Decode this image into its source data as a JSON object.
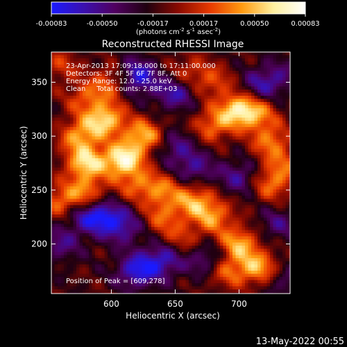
{
  "chart_data": {
    "type": "heatmap",
    "title": "Reconstructed RHESSI Image",
    "xlabel": "Heliocentric X (arcsec)",
    "ylabel": "Heliocentric Y (arcsec)",
    "xlim": [
      553,
      740
    ],
    "ylim": [
      154,
      378
    ],
    "x_ticks": [
      600,
      650,
      700
    ],
    "y_ticks": [
      200,
      250,
      300,
      350
    ],
    "colorbar": {
      "min": -0.00083,
      "max": 0.00083,
      "ticks": [
        "-0.00083",
        "-0.00050",
        "-0.00017",
        "0.00017",
        "0.00050",
        "0.00083"
      ],
      "unit_label": "(photons cm-2 s-1 asec-2)",
      "colors": [
        "#1a1aff",
        "#3a10b0",
        "#500060",
        "#200010",
        "#8a0a00",
        "#e83a00",
        "#ff9a10",
        "#fff0a0",
        "#ffffff"
      ]
    },
    "annotations": [
      "23-Apr-2013 17:09:18.000 to 17:11:00.000",
      "Detectors: 3F 4F 5F 6F 7F 8F, Att 0",
      "Energy Range: 12.0 - 25.0 keV",
      "Clean     Total counts: 2.88E+03"
    ],
    "peak_label": "Position of Peak = [609,278]",
    "peak": [
      609,
      278
    ],
    "blobs": [
      {
        "x": 609,
        "y": 278,
        "v": 1.0
      },
      {
        "x": 580,
        "y": 275,
        "v": 0.85
      },
      {
        "x": 595,
        "y": 315,
        "v": 0.85
      },
      {
        "x": 625,
        "y": 300,
        "v": 0.75
      },
      {
        "x": 575,
        "y": 300,
        "v": 0.65
      },
      {
        "x": 700,
        "y": 325,
        "v": 0.85
      },
      {
        "x": 680,
        "y": 310,
        "v": 0.55
      },
      {
        "x": 725,
        "y": 295,
        "v": 0.55
      },
      {
        "x": 715,
        "y": 320,
        "v": 0.5
      },
      {
        "x": 680,
        "y": 350,
        "v": 0.4
      },
      {
        "x": 600,
        "y": 350,
        "v": 0.5
      },
      {
        "x": 580,
        "y": 335,
        "v": 0.45
      },
      {
        "x": 560,
        "y": 240,
        "v": 0.5
      },
      {
        "x": 580,
        "y": 248,
        "v": 0.55
      },
      {
        "x": 620,
        "y": 255,
        "v": 0.45
      },
      {
        "x": 640,
        "y": 250,
        "v": 0.5
      },
      {
        "x": 640,
        "y": 225,
        "v": 0.45
      },
      {
        "x": 665,
        "y": 240,
        "v": 0.65
      },
      {
        "x": 680,
        "y": 225,
        "v": 0.6
      },
      {
        "x": 700,
        "y": 200,
        "v": 0.7
      },
      {
        "x": 715,
        "y": 178,
        "v": 0.7
      },
      {
        "x": 690,
        "y": 175,
        "v": 0.5
      },
      {
        "x": 725,
        "y": 255,
        "v": 0.5
      },
      {
        "x": 735,
        "y": 272,
        "v": 0.4
      },
      {
        "x": 655,
        "y": 205,
        "v": 0.35
      },
      {
        "x": 660,
        "y": 360,
        "v": 0.35
      },
      {
        "x": 560,
        "y": 365,
        "v": 0.35
      },
      {
        "x": 620,
        "y": 355,
        "v": -0.75
      },
      {
        "x": 650,
        "y": 340,
        "v": -0.55
      },
      {
        "x": 650,
        "y": 290,
        "v": -0.4
      },
      {
        "x": 665,
        "y": 270,
        "v": -0.45
      },
      {
        "x": 715,
        "y": 345,
        "v": -0.4
      },
      {
        "x": 730,
        "y": 355,
        "v": -0.35
      },
      {
        "x": 700,
        "y": 262,
        "v": -0.45
      },
      {
        "x": 595,
        "y": 225,
        "v": -0.6
      },
      {
        "x": 610,
        "y": 215,
        "v": -0.45
      },
      {
        "x": 580,
        "y": 225,
        "v": -0.45
      },
      {
        "x": 620,
        "y": 175,
        "v": -0.7
      },
      {
        "x": 640,
        "y": 185,
        "v": -0.6
      },
      {
        "x": 675,
        "y": 185,
        "v": -0.45
      },
      {
        "x": 560,
        "y": 200,
        "v": -0.4
      },
      {
        "x": 730,
        "y": 218,
        "v": -0.35
      },
      {
        "x": 735,
        "y": 165,
        "v": -0.3
      }
    ]
  },
  "footer_timestamp": "13-May-2022 00:55"
}
